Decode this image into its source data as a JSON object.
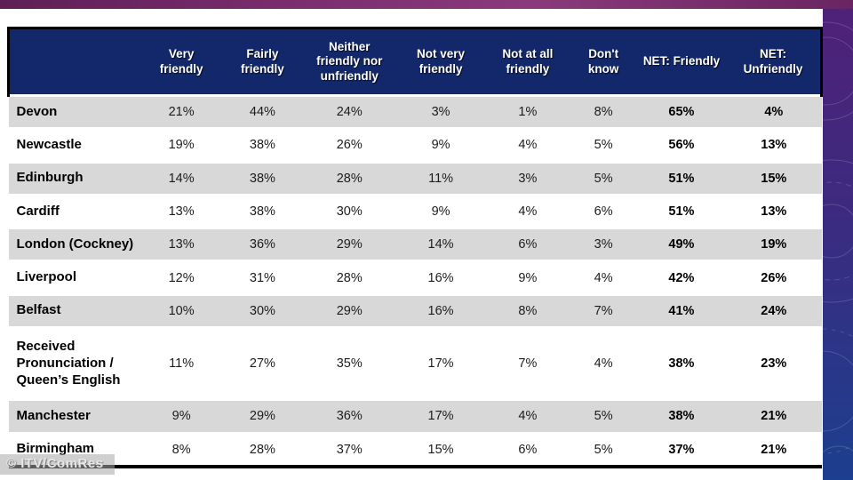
{
  "watermark": {
    "text": "© ITV/ComRes"
  },
  "colors": {
    "header_bg": "#13286a",
    "header_text": "#ffffff",
    "top_bar_purple": "#7b2d6f",
    "row_stripe_gray": "#d8d8d8",
    "row_white": "#ffffff",
    "strip_gradient_top": "#4f2177",
    "strip_gradient_bottom": "#1c3f8e",
    "table_border": "#000000"
  },
  "chart_data": {
    "type": "table",
    "unit": "%",
    "columns": [
      "Very friendly",
      "Fairly friendly",
      "Neither friendly nor unfriendly",
      "Not very friendly",
      "Not at all friendly",
      "Don't know",
      "NET: Friendly",
      "NET: Unfriendly"
    ],
    "net_columns": [
      6,
      7
    ],
    "rows": [
      {
        "label": "Devon",
        "values": [
          21,
          44,
          24,
          3,
          1,
          8,
          65,
          4
        ]
      },
      {
        "label": "Newcastle",
        "values": [
          19,
          38,
          26,
          9,
          4,
          5,
          56,
          13
        ]
      },
      {
        "label": "Edinburgh",
        "values": [
          14,
          38,
          28,
          11,
          3,
          5,
          51,
          15
        ]
      },
      {
        "label": "Cardiff",
        "values": [
          13,
          38,
          30,
          9,
          4,
          6,
          51,
          13
        ]
      },
      {
        "label": "London (Cockney)",
        "values": [
          13,
          36,
          29,
          14,
          6,
          3,
          49,
          19
        ]
      },
      {
        "label": "Liverpool",
        "values": [
          12,
          31,
          28,
          16,
          9,
          4,
          42,
          26
        ]
      },
      {
        "label": "Belfast",
        "values": [
          10,
          30,
          29,
          16,
          8,
          7,
          41,
          24
        ]
      },
      {
        "label": "Received Pronunciation / Queen’s English",
        "values": [
          11,
          27,
          35,
          17,
          7,
          4,
          38,
          23
        ]
      },
      {
        "label": "Manchester",
        "values": [
          9,
          29,
          36,
          17,
          4,
          5,
          38,
          21
        ]
      },
      {
        "label": "Birmingham",
        "values": [
          8,
          28,
          37,
          15,
          6,
          5,
          37,
          21
        ]
      }
    ]
  }
}
